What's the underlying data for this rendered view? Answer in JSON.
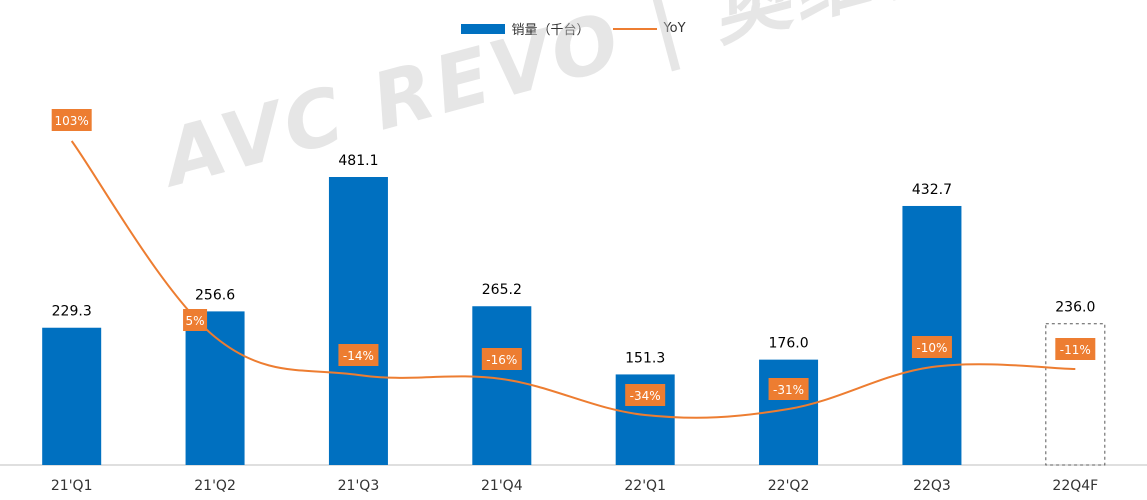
{
  "legend": {
    "bar_label": "销量（千台）",
    "line_label": "YoY"
  },
  "watermark": "AVC REVO | 奥维睿沃",
  "colors": {
    "bar": "#0070c0",
    "line": "#ed7d31",
    "label_bg": "#ed7d31"
  },
  "chart_data": {
    "type": "bar",
    "categories": [
      "21'Q1",
      "21'Q2",
      "21'Q3",
      "21'Q4",
      "22'Q1",
      "22'Q2",
      "22Q3",
      "22Q4F"
    ],
    "series": [
      {
        "name": "销量（千台）",
        "type": "bar",
        "values": [
          229.3,
          256.6,
          481.1,
          265.2,
          151.3,
          176.0,
          432.7,
          236.0
        ],
        "value_labels": [
          "229.3",
          "256.6",
          "481.1",
          "265.2",
          "151.3",
          "176.0",
          "432.7",
          "236.0"
        ]
      },
      {
        "name": "YoY",
        "type": "line",
        "values": [
          103,
          5,
          -14,
          -16,
          -34,
          -31,
          -10,
          -11
        ],
        "value_labels": [
          "103%",
          "5%",
          "-14%",
          "-16%",
          "-34%",
          "-31%",
          "-10%",
          "-11%"
        ]
      }
    ],
    "forecast_category": "22Q4F",
    "grid": false,
    "legend_position": "top-center"
  }
}
